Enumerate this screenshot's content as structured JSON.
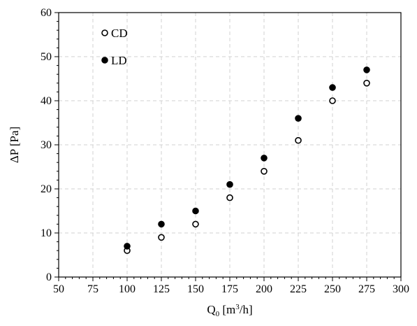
{
  "chart_data": {
    "type": "scatter",
    "xlabel": "Q",
    "xlabel_sub": "0",
    "xlabel_unit": " [m",
    "xlabel_sup": "3",
    "xlabel_end": "/h]",
    "ylabel": "ΔP [Pa]",
    "xlim": [
      50,
      300
    ],
    "ylim": [
      0,
      60
    ],
    "x_major_ticks": [
      50,
      75,
      100,
      125,
      150,
      175,
      200,
      225,
      250,
      275,
      300
    ],
    "x_minor_step": 5,
    "y_major_ticks": [
      0,
      10,
      20,
      30,
      40,
      50,
      60
    ],
    "y_minor_step": 2,
    "grid": true,
    "legend_position": "top-left",
    "series": [
      {
        "name": "CD",
        "marker": "open-circle",
        "color": "#000000",
        "x": [
          100,
          125,
          150,
          175,
          200,
          225,
          250,
          275
        ],
        "y": [
          6,
          9,
          12,
          18,
          24,
          31,
          40,
          44
        ]
      },
      {
        "name": "LD",
        "marker": "filled-circle",
        "color": "#000000",
        "x": [
          100,
          125,
          150,
          175,
          200,
          225,
          250,
          275
        ],
        "y": [
          7,
          12,
          15,
          21,
          27,
          36,
          43,
          47
        ]
      }
    ]
  }
}
